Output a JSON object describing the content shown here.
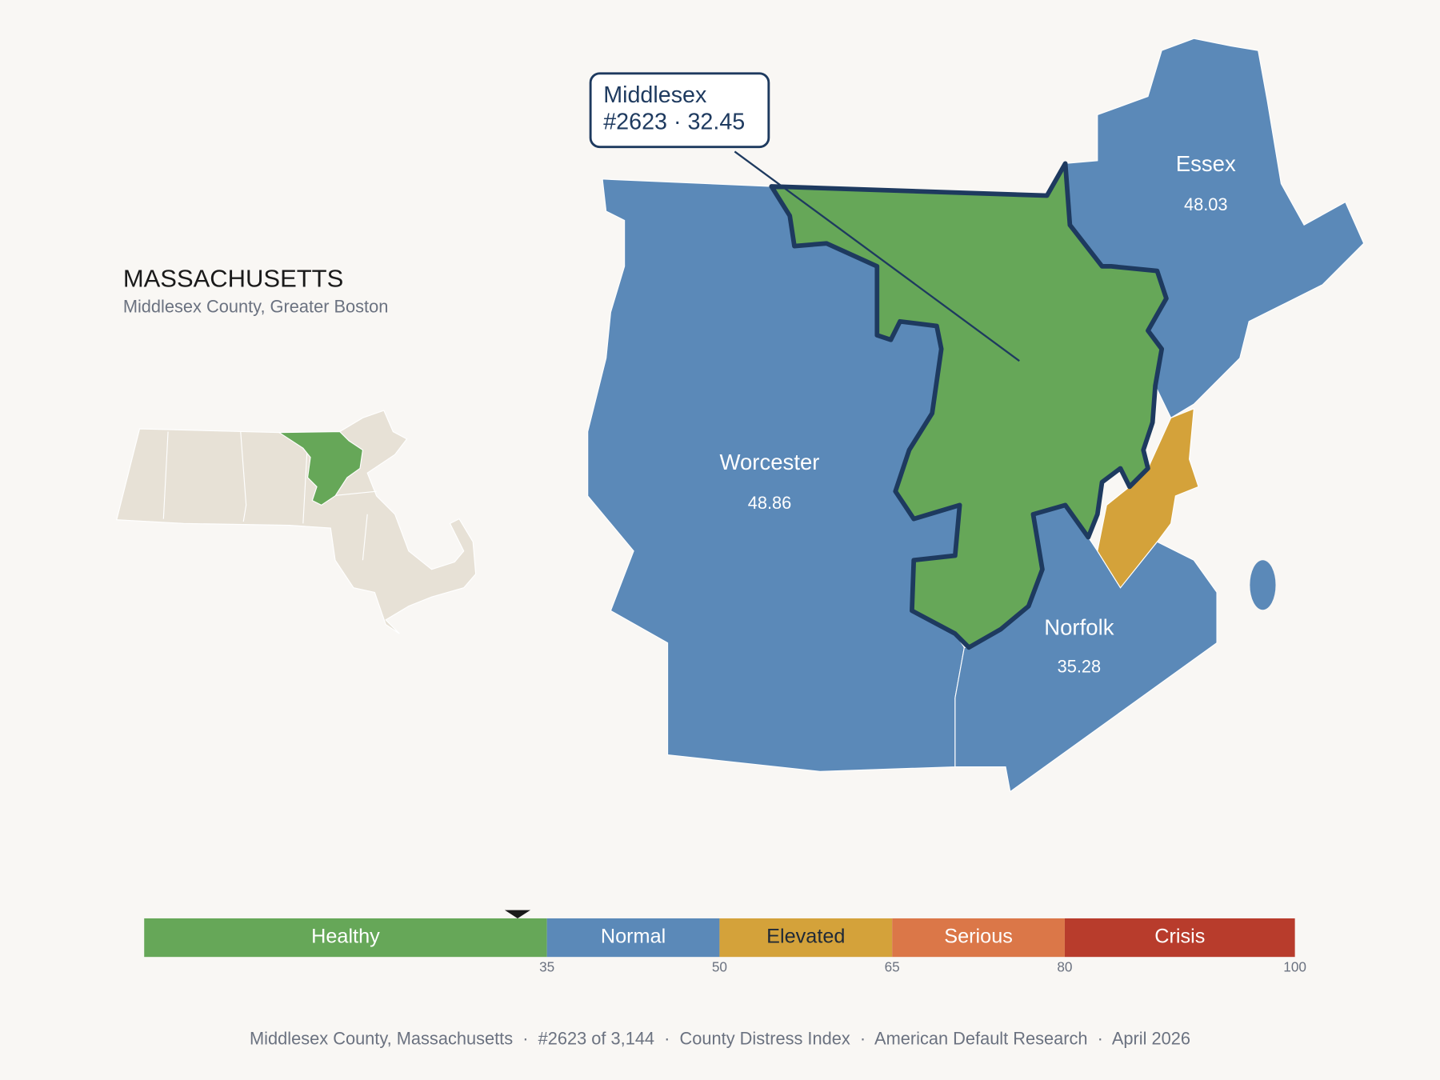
{
  "header": {
    "title": "MASSACHUSETTS",
    "subtitle": "Middlesex County, Greater Boston"
  },
  "callout": {
    "name": "Middlesex",
    "detail": "#2623 · 32.45"
  },
  "counties": [
    {
      "name": "Middlesex",
      "value": 32.45,
      "color": "#66a758"
    },
    {
      "name": "Worcester",
      "value": 48.86,
      "color": "#5b89b8"
    },
    {
      "name": "Essex",
      "value": 48.03,
      "color": "#5b89b8"
    },
    {
      "name": "Norfolk",
      "value": 35.28,
      "color": "#5b89b8"
    }
  ],
  "scale": {
    "xlim": [
      0,
      100
    ],
    "xticks": [
      35,
      50,
      65,
      80,
      100
    ],
    "marker": 32.45,
    "segments": [
      {
        "label": "Healthy",
        "from": 0,
        "to": 35,
        "color": "#66a758",
        "text_color": "#ffffff"
      },
      {
        "label": "Normal",
        "from": 35,
        "to": 50,
        "color": "#5b89b8",
        "text_color": "#ffffff"
      },
      {
        "label": "Elevated",
        "from": 50,
        "to": 65,
        "color": "#d4a23a",
        "text_color": "#1f2937"
      },
      {
        "label": "Serious",
        "from": 65,
        "to": 80,
        "color": "#db7748",
        "text_color": "#ffffff"
      },
      {
        "label": "Crisis",
        "from": 80,
        "to": 100,
        "color": "#b83c2c",
        "text_color": "#ffffff"
      }
    ]
  },
  "footer": "Middlesex County, Massachusetts  ·  #2623 of 3,144  ·  County Distress Index  ·  American Default Research  ·  April 2026"
}
